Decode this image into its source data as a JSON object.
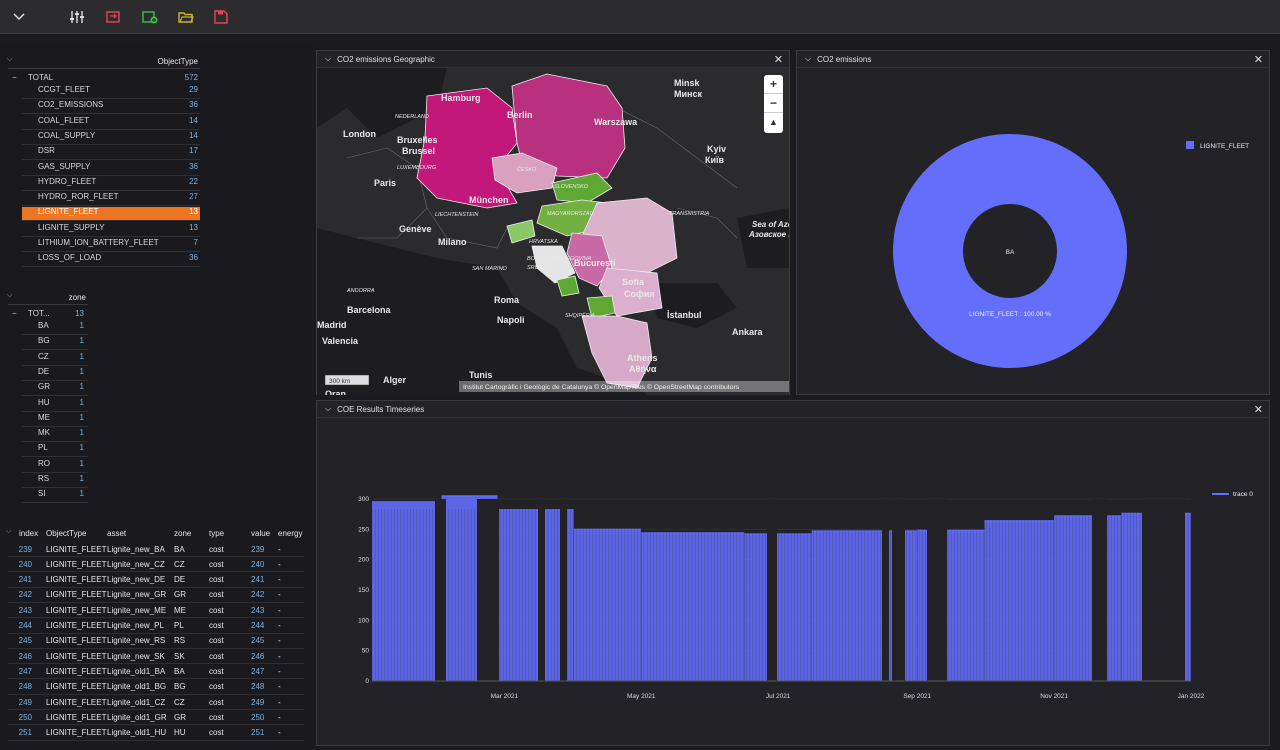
{
  "toolbar": {
    "icons": [
      "chevron-down-icon",
      "sliders-icon",
      "swap-icon",
      "add-sheet-icon",
      "folder-open-icon",
      "save-icon"
    ]
  },
  "objtype_table": {
    "header": "ObjectType",
    "total": {
      "label": "TOTAL",
      "count": "572"
    },
    "rows": [
      {
        "label": "CCGT_FLEET",
        "count": "29"
      },
      {
        "label": "CO2_EMISSIONS",
        "count": "36"
      },
      {
        "label": "COAL_FLEET",
        "count": "14"
      },
      {
        "label": "COAL_SUPPLY",
        "count": "14"
      },
      {
        "label": "DSR",
        "count": "17"
      },
      {
        "label": "GAS_SUPPLY",
        "count": "36"
      },
      {
        "label": "HYDRO_FLEET",
        "count": "22"
      },
      {
        "label": "HYDRO_ROR_FLEET",
        "count": "27"
      },
      {
        "label": "LIGNITE_FLEET",
        "count": "13",
        "selected": true
      },
      {
        "label": "LIGNITE_SUPPLY",
        "count": "13"
      },
      {
        "label": "LITHIUM_ION_BATTERY_FLEET",
        "count": "7"
      },
      {
        "label": "LOSS_OF_LOAD",
        "count": "36"
      }
    ]
  },
  "zone_table": {
    "header": "zone",
    "total": {
      "label": "TOT...",
      "count": "13"
    },
    "rows": [
      {
        "label": "BA",
        "count": "1"
      },
      {
        "label": "BG",
        "count": "1"
      },
      {
        "label": "CZ",
        "count": "1"
      },
      {
        "label": "DE",
        "count": "1"
      },
      {
        "label": "GR",
        "count": "1"
      },
      {
        "label": "HU",
        "count": "1"
      },
      {
        "label": "ME",
        "count": "1"
      },
      {
        "label": "MK",
        "count": "1"
      },
      {
        "label": "PL",
        "count": "1"
      },
      {
        "label": "RO",
        "count": "1"
      },
      {
        "label": "RS",
        "count": "1"
      },
      {
        "label": "SI",
        "count": "1"
      }
    ]
  },
  "data_table": {
    "columns": [
      "index",
      "ObjectType",
      "asset",
      "zone",
      "type",
      "value",
      "energy"
    ],
    "rows": [
      [
        "239",
        "LIGNITE_FLEET",
        "Lignite_new_BA",
        "BA",
        "cost",
        "239",
        "-"
      ],
      [
        "240",
        "LIGNITE_FLEET",
        "Lignite_new_CZ",
        "CZ",
        "cost",
        "240",
        "-"
      ],
      [
        "241",
        "LIGNITE_FLEET",
        "Lignite_new_DE",
        "DE",
        "cost",
        "241",
        "-"
      ],
      [
        "242",
        "LIGNITE_FLEET",
        "Lignite_new_GR",
        "GR",
        "cost",
        "242",
        "-"
      ],
      [
        "243",
        "LIGNITE_FLEET",
        "Lignite_new_ME",
        "ME",
        "cost",
        "243",
        "-"
      ],
      [
        "244",
        "LIGNITE_FLEET",
        "Lignite_new_PL",
        "PL",
        "cost",
        "244",
        "-"
      ],
      [
        "245",
        "LIGNITE_FLEET",
        "Lignite_new_RS",
        "RS",
        "cost",
        "245",
        "-"
      ],
      [
        "246",
        "LIGNITE_FLEET",
        "Lignite_new_SK",
        "SK",
        "cost",
        "246",
        "-"
      ],
      [
        "247",
        "LIGNITE_FLEET",
        "Lignite_old1_BA",
        "BA",
        "cost",
        "247",
        "-"
      ],
      [
        "248",
        "LIGNITE_FLEET",
        "Lignite_old1_BG",
        "BG",
        "cost",
        "248",
        "-"
      ],
      [
        "249",
        "LIGNITE_FLEET",
        "Lignite_old1_CZ",
        "CZ",
        "cost",
        "249",
        "-"
      ],
      [
        "250",
        "LIGNITE_FLEET",
        "Lignite_old1_GR",
        "GR",
        "cost",
        "250",
        "-"
      ],
      [
        "251",
        "LIGNITE_FLEET",
        "Lignite_old1_HU",
        "HU",
        "cost",
        "251",
        "-"
      ]
    ]
  },
  "map_panel": {
    "title": "CO2 emissions Geographic",
    "zoom_in": "+",
    "zoom_out": "−",
    "scale": "300 km",
    "attribution": "Institut Cartogràfic i Geològic de Catalunya © OpenMapTiles © OpenStreetMap contributors",
    "labels": [
      "Minsk",
      "Минск",
      "Hamburg",
      "Berlin",
      "Warszawa",
      "NEDERLAND",
      "London",
      "Bruxelles",
      "Brussel",
      "LUXEMBOURG",
      "Paris",
      "Kyiv",
      "Київ",
      "ČESKO",
      "SLOVENSKO",
      "München",
      "LIECHTENSTEIN",
      "MAGYARORSZÁG",
      "TRANSNISTRIA",
      "Genève",
      "Milano",
      "HRVATSKA",
      "BOSNA I HERCEGOVINA",
      "SRBIJA",
      "București",
      "Sea of Azov",
      "Азовское море",
      "SAN MARINO",
      "ANDORRA",
      "Roma",
      "Sofia",
      "София",
      "Barcelona",
      "Napoli",
      "SHQIPËRIA",
      "İstanbul",
      "Ankara",
      "Madrid",
      "Valencia",
      "Athens",
      "Αθήνα",
      "Tunis",
      "Alger",
      "Oran"
    ],
    "colors": {
      "de": "#c2187a",
      "pl": "#b8307e",
      "cz": "#d9a0bf",
      "sk": "#5fa833",
      "hu": "#72b043",
      "ro": "#dab2cb",
      "rs": "#c86aa6",
      "bg": "#dbafcd",
      "gr": "#d7a9c8",
      "si": "#8cc865",
      "ba": "#e5e5e5",
      "me": "#5fa833",
      "mk": "#5fa833"
    }
  },
  "pie_panel": {
    "title": "CO2 emissions",
    "legend_label": "LIGNITE_FLEET",
    "center_label": "BA",
    "slice_label": "LIGNITE_FLEET : 100.00 %",
    "color": "#636efa"
  },
  "ts_panel": {
    "title": "COE Results Timeseries",
    "legend_label": "trace 0",
    "color": "#636efa"
  },
  "chart_data": [
    {
      "type": "pie",
      "labels": [
        "LIGNITE_FLEET"
      ],
      "values": [
        100
      ],
      "hole": true,
      "center_text": "BA",
      "legend_placement": "top-right"
    },
    {
      "type": "line",
      "series": [
        {
          "name": "trace 0"
        }
      ],
      "x_ticks": [
        "Mar 2021",
        "May 2021",
        "Jul 2021",
        "Sep 2021",
        "Nov 2021",
        "Jan 2022"
      ],
      "y_ticks": [
        "0",
        "50",
        "100",
        "150",
        "200",
        "250",
        "300"
      ],
      "ylim": [
        0,
        300
      ],
      "x_range": [
        "2021-01-01",
        "2022-01-01"
      ],
      "baseline_steps": [
        {
          "from": "2021-01-01",
          "to": "2021-01-31",
          "value": 295
        },
        {
          "from": "2021-02-01",
          "to": "2021-02-25",
          "value": 305
        },
        {
          "from": "2021-02-26",
          "to": "2021-03-31",
          "value": 282
        },
        {
          "from": "2021-04-01",
          "to": "2021-04-30",
          "value": 250
        },
        {
          "from": "2021-05-01",
          "to": "2021-06-15",
          "value": 244
        },
        {
          "from": "2021-06-16",
          "to": "2021-07-15",
          "value": 242
        },
        {
          "from": "2021-07-16",
          "to": "2021-08-31",
          "value": 247
        },
        {
          "from": "2021-09-01",
          "to": "2021-09-30",
          "value": 248
        },
        {
          "from": "2021-10-01",
          "to": "2021-10-31",
          "value": 264
        },
        {
          "from": "2021-11-01",
          "to": "2021-11-30",
          "value": 272
        },
        {
          "from": "2021-12-01",
          "to": "2021-12-31",
          "value": 276
        }
      ],
      "legend_placement": "top-right"
    }
  ]
}
